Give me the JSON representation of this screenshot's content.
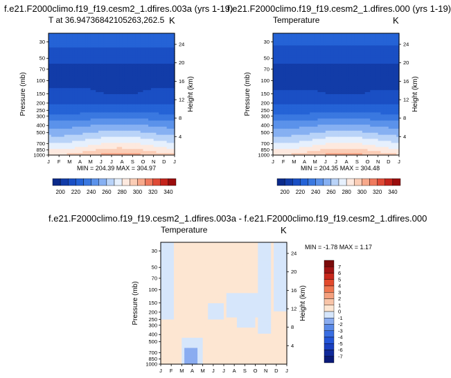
{
  "chart_data": [
    {
      "type": "contour",
      "title": "f.e21.F2000climo.f19_f19.cesm2_1.dfires.003a (yrs 1-19)",
      "subtitle_left": "T at 36.94736842105263,262.5",
      "subtitle_right": "K",
      "xlabel": "",
      "ylabel": "Pressure (mb)",
      "ylabel_right": "Height (km)",
      "x_tick_labels": [
        "J",
        "F",
        "M",
        "A",
        "M",
        "J",
        "J",
        "A",
        "S",
        "O",
        "N",
        "D",
        "J"
      ],
      "pressure_ticks": [
        {
          "label": "30",
          "value": 30
        },
        {
          "label": "50",
          "value": 50
        },
        {
          "label": "70",
          "value": 70
        },
        {
          "label": "100",
          "value": 100
        },
        {
          "label": "150",
          "value": 150
        },
        {
          "label": "200",
          "value": 200
        },
        {
          "label": "250",
          "value": 250
        },
        {
          "label": "300",
          "value": 300
        },
        {
          "label": "400",
          "value": 400
        },
        {
          "label": "500",
          "value": 500
        },
        {
          "label": "700",
          "value": 700
        },
        {
          "label": "850",
          "value": 850
        },
        {
          "label": "1000",
          "value": 1000
        }
      ],
      "height_ticks": [
        {
          "label": "4",
          "value": 4
        },
        {
          "label": "8",
          "value": 8
        },
        {
          "label": "12",
          "value": 12
        },
        {
          "label": "16",
          "value": 16
        },
        {
          "label": "20",
          "value": 20
        },
        {
          "label": "24",
          "value": 24
        }
      ],
      "stats": "MIN = 204.39   MAX = 304.97",
      "levels": [
        200,
        210,
        220,
        230,
        240,
        250,
        260,
        270,
        280,
        290,
        300,
        310,
        320,
        330,
        340
      ],
      "colorbar_labels": [
        "200",
        "220",
        "240",
        "260",
        "280",
        "300",
        "320",
        "340"
      ],
      "colors": [
        "#0b2a8a",
        "#123ca8",
        "#1a4fc4",
        "#2563d6",
        "#3a78e0",
        "#5b92ea",
        "#86b0f2",
        "#b9d3f8",
        "#e6f0fd",
        "#fde9df",
        "#fbcdb6",
        "#f7a98b",
        "#ef7a5e",
        "#df4a36",
        "#c4241c",
        "#9b0d0d"
      ],
      "series_profile": {
        "pressure": [
          30,
          50,
          70,
          100,
          150,
          200,
          250,
          300,
          400,
          500,
          700,
          850,
          1000
        ],
        "temperature_annual_mean": [
          222,
          214,
          206,
          206,
          212,
          219,
          226,
          234,
          249,
          259,
          276,
          287,
          298
        ]
      }
    },
    {
      "type": "contour",
      "title": "f.e21.F2000climo.f19_f19.cesm2_1.dfires.000 (yrs 1-19)",
      "subtitle_left": "Temperature",
      "subtitle_right": "K",
      "xlabel": "",
      "ylabel": "Pressure (mb)",
      "ylabel_right": "Height (km)",
      "x_tick_labels": [
        "J",
        "F",
        "M",
        "A",
        "M",
        "J",
        "J",
        "A",
        "S",
        "O",
        "N",
        "D",
        "J"
      ],
      "pressure_ticks": [
        {
          "label": "30",
          "value": 30
        },
        {
          "label": "50",
          "value": 50
        },
        {
          "label": "70",
          "value": 70
        },
        {
          "label": "100",
          "value": 100
        },
        {
          "label": "150",
          "value": 150
        },
        {
          "label": "200",
          "value": 200
        },
        {
          "label": "250",
          "value": 250
        },
        {
          "label": "300",
          "value": 300
        },
        {
          "label": "400",
          "value": 400
        },
        {
          "label": "500",
          "value": 500
        },
        {
          "label": "700",
          "value": 700
        },
        {
          "label": "850",
          "value": 850
        },
        {
          "label": "1000",
          "value": 1000
        }
      ],
      "height_ticks": [
        {
          "label": "4",
          "value": 4
        },
        {
          "label": "8",
          "value": 8
        },
        {
          "label": "12",
          "value": 12
        },
        {
          "label": "16",
          "value": 16
        },
        {
          "label": "20",
          "value": 20
        },
        {
          "label": "24",
          "value": 24
        }
      ],
      "stats": "MIN = 204.35   MAX = 304.48",
      "levels": [
        200,
        210,
        220,
        230,
        240,
        250,
        260,
        270,
        280,
        290,
        300,
        310,
        320,
        330,
        340
      ],
      "colorbar_labels": [
        "200",
        "220",
        "240",
        "260",
        "280",
        "300",
        "320",
        "340"
      ],
      "colors": [
        "#0b2a8a",
        "#123ca8",
        "#1a4fc4",
        "#2563d6",
        "#3a78e0",
        "#5b92ea",
        "#86b0f2",
        "#b9d3f8",
        "#e6f0fd",
        "#fde9df",
        "#fbcdb6",
        "#f7a98b",
        "#ef7a5e",
        "#df4a36",
        "#c4241c",
        "#9b0d0d"
      ],
      "series_profile": {
        "pressure": [
          30,
          50,
          70,
          100,
          150,
          200,
          250,
          300,
          400,
          500,
          700,
          850,
          1000
        ],
        "temperature_annual_mean": [
          222,
          214,
          206,
          206,
          212,
          219,
          226,
          234,
          249,
          259,
          276,
          287,
          298
        ]
      }
    },
    {
      "type": "contour",
      "title": "f.e21.F2000climo.f19_f19.cesm2_1.dfires.003a - f.e21.F2000climo.f19_f19.cesm2_1.dfires.000",
      "subtitle_left": "Temperature",
      "subtitle_right": "K",
      "xlabel": "",
      "ylabel": "Pressure (mb)",
      "ylabel_right": "Height (km)",
      "x_tick_labels": [
        "J",
        "F",
        "M",
        "A",
        "M",
        "J",
        "J",
        "A",
        "S",
        "O",
        "N",
        "D",
        "J"
      ],
      "pressure_ticks": [
        {
          "label": "30",
          "value": 30
        },
        {
          "label": "50",
          "value": 50
        },
        {
          "label": "70",
          "value": 70
        },
        {
          "label": "100",
          "value": 100
        },
        {
          "label": "150",
          "value": 150
        },
        {
          "label": "200",
          "value": 200
        },
        {
          "label": "250",
          "value": 250
        },
        {
          "label": "300",
          "value": 300
        },
        {
          "label": "400",
          "value": 400
        },
        {
          "label": "500",
          "value": 500
        },
        {
          "label": "700",
          "value": 700
        },
        {
          "label": "850",
          "value": 850
        },
        {
          "label": "1000",
          "value": 1000
        }
      ],
      "height_ticks": [
        {
          "label": "4",
          "value": 4
        },
        {
          "label": "8",
          "value": 8
        },
        {
          "label": "12",
          "value": 12
        },
        {
          "label": "16",
          "value": 16
        },
        {
          "label": "20",
          "value": 20
        },
        {
          "label": "24",
          "value": 24
        }
      ],
      "stats": "MIN = -1.78   MAX =  1.17",
      "levels": [
        -7,
        -6,
        -5,
        -4,
        -3,
        -2,
        -1,
        0,
        1,
        2,
        3,
        4,
        5,
        6,
        7
      ],
      "colorbar_labels": [
        "7",
        "6",
        "5",
        "4",
        "3",
        "2",
        "1",
        "0",
        "-1",
        "-2",
        "-3",
        "-4",
        "-5",
        "-6",
        "-7"
      ],
      "colors": [
        "#0a1a78",
        "#10299a",
        "#1a40c0",
        "#2456d8",
        "#3a6ee2",
        "#5a8ae8",
        "#8aacf0",
        "#d6e6fb",
        "#fde6d2",
        "#f8c4a8",
        "#f4a07e",
        "#ee7650",
        "#e24a2c",
        "#c8281c",
        "#a01414",
        "#7a0a0a"
      ],
      "dominant_value_ranges": {
        "positive_area": "0 to 1",
        "negative_area": "-1 to 0",
        "min_area": "-2 to -1 near Mar, 700-1000 mb"
      }
    }
  ]
}
